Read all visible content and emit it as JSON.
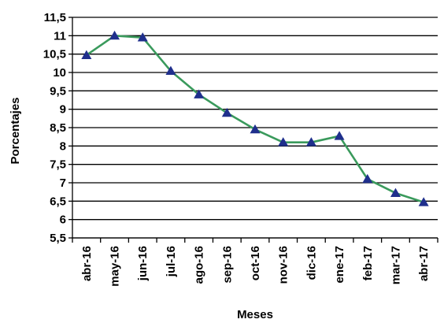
{
  "chart_data": {
    "type": "line",
    "xlabel": "Meses",
    "ylabel": "Porcentajes",
    "ylim": [
      5.5,
      11.5
    ],
    "ytick_step": 0.5,
    "grid": true,
    "categories": [
      "abr-16",
      "may-16",
      "jun-16",
      "jul-16",
      "ago-16",
      "sep-16",
      "oct-16",
      "nov-16",
      "dic-16",
      "ene-17",
      "feb-17",
      "mar-17",
      "abr-17"
    ],
    "series": [
      {
        "values": [
          10.47,
          11.0,
          10.95,
          10.04,
          9.4,
          8.9,
          8.45,
          8.1,
          8.1,
          8.27,
          7.1,
          6.72,
          6.47
        ],
        "line_color": "#3a9a5c",
        "marker": "triangle",
        "marker_color": "#1f2f8c"
      }
    ]
  }
}
